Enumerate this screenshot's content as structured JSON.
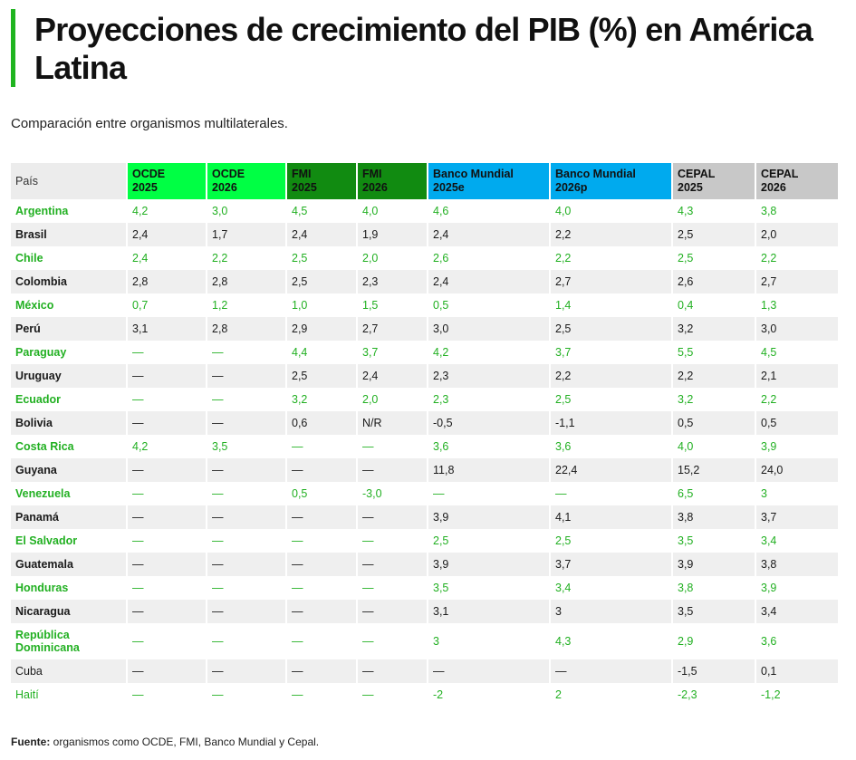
{
  "title": "Proyecciones de crecimiento del PIB (%) en América Latina",
  "subtitle": "Comparación entre organismos multilaterales.",
  "colors": {
    "accent_green": "#1fb41f",
    "ocde": "#00ff44",
    "fmi": "#118b11",
    "banco_mundial": "#00aaee",
    "cepal": "#c8c8c8",
    "green_text": "#22b022"
  },
  "table": {
    "headers": [
      {
        "line1": "País",
        "line2": ""
      },
      {
        "line1": "OCDE",
        "line2": "2025"
      },
      {
        "line1": "OCDE",
        "line2": "2026"
      },
      {
        "line1": "FMI",
        "line2": "2025"
      },
      {
        "line1": "FMI",
        "line2": "2026"
      },
      {
        "line1": "Banco Mundial",
        "line2": "2025e"
      },
      {
        "line1": "Banco Mundial",
        "line2": "2026p"
      },
      {
        "line1": "CEPAL",
        "line2": "2025"
      },
      {
        "line1": "CEPAL",
        "line2": "2026"
      }
    ],
    "rows": [
      {
        "country": "Argentina",
        "values": [
          "4,2",
          "3,0",
          "4,5",
          "4,0",
          "4,6",
          "4,0",
          "4,3",
          "3,8"
        ],
        "style": "green"
      },
      {
        "country": "Brasil",
        "values": [
          "2,4",
          "1,7",
          "2,4",
          "1,9",
          "2,4",
          "2,2",
          "2,5",
          "2,0"
        ],
        "style": "dark"
      },
      {
        "country": "Chile",
        "values": [
          "2,4",
          "2,2",
          "2,5",
          "2,0",
          "2,6",
          "2,2",
          "2,5",
          "2,2"
        ],
        "style": "green"
      },
      {
        "country": "Colombia",
        "values": [
          "2,8",
          "2,8",
          "2,5",
          "2,3",
          "2,4",
          "2,7",
          "2,6",
          "2,7"
        ],
        "style": "dark"
      },
      {
        "country": "México",
        "values": [
          "0,7",
          "1,2",
          "1,0",
          "1,5",
          "0,5",
          "1,4",
          "0,4",
          "1,3"
        ],
        "style": "green"
      },
      {
        "country": "Perú",
        "values": [
          "3,1",
          "2,8",
          "2,9",
          "2,7",
          "3,0",
          "2,5",
          "3,2",
          "3,0"
        ],
        "style": "dark"
      },
      {
        "country": "Paraguay",
        "values": [
          "—",
          "—",
          "4,4",
          "3,7",
          "4,2",
          "3,7",
          "5,5",
          "4,5"
        ],
        "style": "green"
      },
      {
        "country": "Uruguay",
        "values": [
          "—",
          "—",
          "2,5",
          "2,4",
          "2,3",
          "2,2",
          "2,2",
          "2,1"
        ],
        "style": "dark"
      },
      {
        "country": "Ecuador",
        "values": [
          "—",
          "—",
          "3,2",
          "2,0",
          "2,3",
          "2,5",
          "3,2",
          "2,2"
        ],
        "style": "green"
      },
      {
        "country": "Bolivia",
        "values": [
          "—",
          "—",
          "0,6",
          "N/R",
          "-0,5",
          "-1,1",
          "0,5",
          "0,5"
        ],
        "style": "dark"
      },
      {
        "country": "Costa Rica",
        "values": [
          "4,2",
          "3,5",
          "—",
          "—",
          "3,6",
          "3,6",
          "4,0",
          "3,9"
        ],
        "style": "green"
      },
      {
        "country": "Guyana",
        "values": [
          "—",
          "—",
          "—",
          "—",
          "11,8",
          "22,4",
          "15,2",
          "24,0"
        ],
        "style": "dark"
      },
      {
        "country": "Venezuela",
        "values": [
          "—",
          "—",
          "0,5",
          "-3,0",
          "—",
          "—",
          "6,5",
          "3"
        ],
        "style": "green"
      },
      {
        "country": "Panamá",
        "values": [
          "—",
          "—",
          "—",
          "—",
          "3,9",
          "4,1",
          "3,8",
          "3,7"
        ],
        "style": "dark"
      },
      {
        "country": "El Salvador",
        "values": [
          "—",
          "—",
          "—",
          "—",
          "2,5",
          "2,5",
          "3,5",
          "3,4"
        ],
        "style": "green"
      },
      {
        "country": "Guatemala",
        "values": [
          "—",
          "—",
          "—",
          "—",
          "3,9",
          "3,7",
          "3,9",
          "3,8"
        ],
        "style": "dark"
      },
      {
        "country": "Honduras",
        "values": [
          "—",
          "—",
          "—",
          "—",
          "3,5",
          "3,4",
          "3,8",
          "3,9"
        ],
        "style": "green"
      },
      {
        "country": "Nicaragua",
        "values": [
          "—",
          "—",
          "—",
          "—",
          "3,1",
          "3",
          "3,5",
          "3,4"
        ],
        "style": "dark"
      },
      {
        "country": "República Dominicana",
        "values": [
          "—",
          "—",
          "—",
          "—",
          "3",
          "4,3",
          "2,9",
          "3,6"
        ],
        "style": "green"
      },
      {
        "country": "Cuba",
        "values": [
          "—",
          "—",
          "—",
          "—",
          "—",
          "—",
          "-1,5",
          "0,1"
        ],
        "style": "plain"
      },
      {
        "country": "Haití",
        "values": [
          "—",
          "—",
          "—",
          "—",
          "-2",
          "2",
          "-2,3",
          "-1,2"
        ],
        "style": "green-plain"
      }
    ]
  },
  "source": {
    "label": "Fuente:",
    "text": " organismos como OCDE, FMI, Banco Mundial y Cepal."
  }
}
